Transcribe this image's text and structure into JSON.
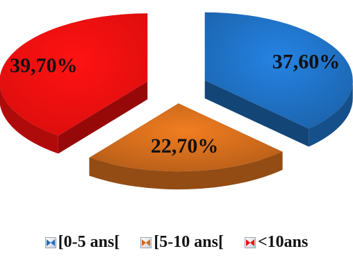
{
  "chart_data": {
    "type": "pie",
    "title": "",
    "categories": [
      "[0-5 ans[",
      "[5-10 ans[",
      "<10ans"
    ],
    "values": [
      37.6,
      22.7,
      39.7
    ],
    "data_labels": [
      "37,60%",
      "22,70%",
      "39,70%"
    ],
    "colors": [
      "#1f6fc0",
      "#cc6a1c",
      "#f40f0f"
    ],
    "style": "3d-exploded",
    "legend_position": "bottom"
  }
}
